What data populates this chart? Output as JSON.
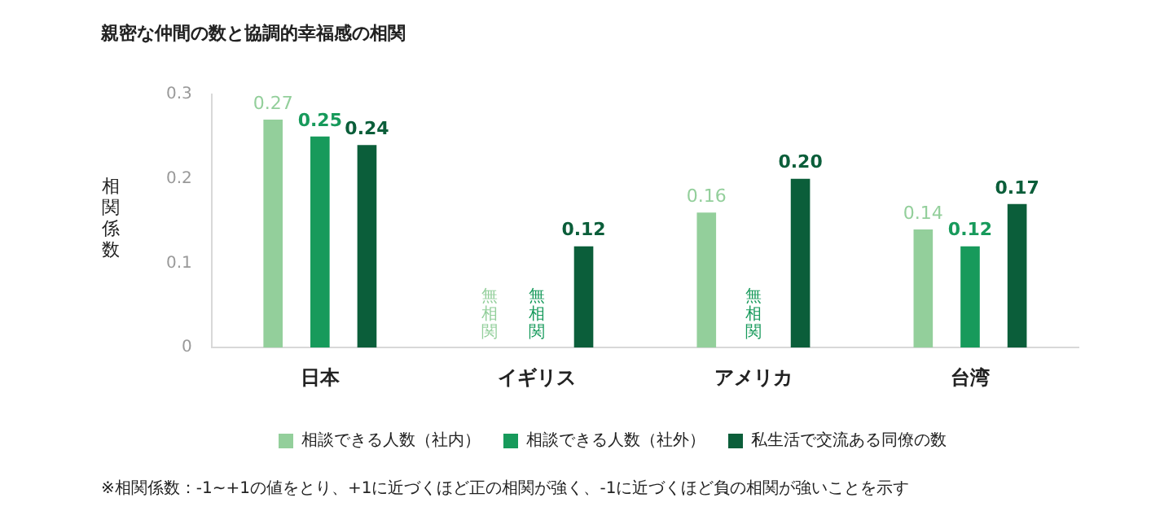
{
  "chart_data": {
    "type": "bar",
    "title": "親密な仲間の数と協調的幸福感の相関",
    "ylabel": "相関係数",
    "categories": [
      "日本",
      "イギリス",
      "アメリカ",
      "台湾"
    ],
    "series": [
      {
        "name": "相談できる人数（社内）",
        "color": "#93cf9b",
        "values": [
          0.27,
          null,
          0.16,
          0.14
        ],
        "value_labels": [
          "0.27",
          "無相関",
          "0.16",
          "0.14"
        ]
      },
      {
        "name": "相談できる人数（社外）",
        "color": "#179a5b",
        "values": [
          0.25,
          null,
          null,
          0.12
        ],
        "value_labels": [
          "0.25",
          "無相関",
          "無相関",
          "0.12"
        ]
      },
      {
        "name": "私生活で交流ある同僚の数",
        "color": "#0b5e3a",
        "values": [
          0.24,
          0.12,
          0.2,
          0.17
        ],
        "value_labels": [
          "0.24",
          "0.12",
          "0.20",
          "0.17"
        ]
      }
    ],
    "ylim": [
      0,
      0.3
    ],
    "yticks": [
      0,
      0.1,
      0.2,
      0.3
    ],
    "grid": false,
    "legend": "bottom",
    "annotations": [
      "※相関係数：-1~+1の値をとり、+1に近づくほど正の相関が強く、-1に近づくほど負の相関が強いことを示す"
    ]
  }
}
